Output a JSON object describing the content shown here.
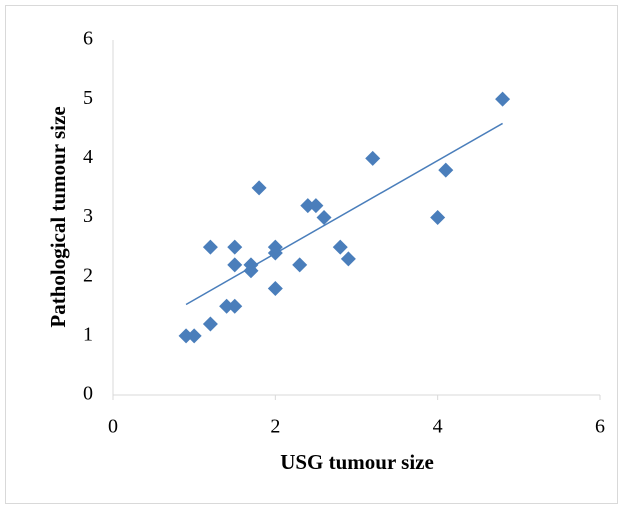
{
  "chart_data": {
    "type": "scatter",
    "x_label": "USG tumour size",
    "y_label": "Pathological tumour size",
    "color": "#4a7ebb",
    "x": [
      0.9,
      1.0,
      1.2,
      1.2,
      1.4,
      1.5,
      1.5,
      1.5,
      1.7,
      1.7,
      1.8,
      2.0,
      2.0,
      2.0,
      2.3,
      2.4,
      2.5,
      2.6,
      2.8,
      2.9,
      3.2,
      4.0,
      4.1,
      4.8
    ],
    "values": [
      1.0,
      1.0,
      1.2,
      2.5,
      1.5,
      1.5,
      2.2,
      2.5,
      2.1,
      2.2,
      3.5,
      2.4,
      2.5,
      1.8,
      2.2,
      3.2,
      3.2,
      3.0,
      2.5,
      2.3,
      4.0,
      3.0,
      3.8,
      5.0
    ],
    "trendline": {
      "x": [
        0.9,
        4.8
      ],
      "values": [
        1.53,
        4.59
      ]
    },
    "xlim": [
      0,
      6
    ],
    "xticks": [
      0,
      2,
      4,
      6
    ],
    "ylim": [
      0,
      6
    ],
    "yticks": [
      0,
      1,
      2,
      3,
      4,
      5,
      6
    ]
  }
}
